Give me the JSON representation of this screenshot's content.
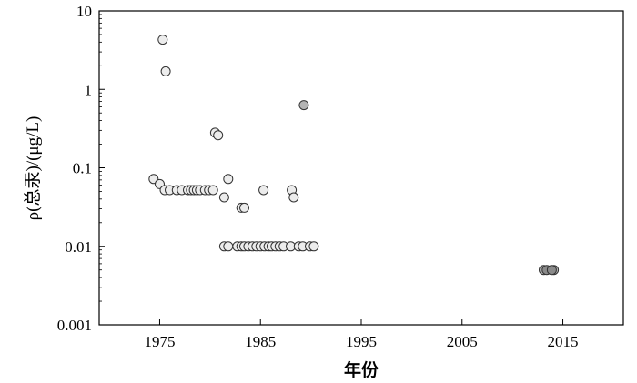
{
  "chart_data": {
    "type": "scatter",
    "title": "",
    "xlabel": "年份",
    "ylabel": "ρ(总汞)/(μg/L)",
    "y_scale": "log",
    "xlim": [
      1969,
      2021
    ],
    "ylim": [
      0.001,
      10
    ],
    "x_ticks": [
      1975,
      1985,
      1995,
      2005,
      2015
    ],
    "x_tick_labels": [
      "1975",
      "1985",
      "1995",
      "2005",
      "2015"
    ],
    "y_ticks": [
      0.001,
      0.01,
      0.1,
      1,
      10
    ],
    "y_tick_labels": [
      "0.001",
      "0.01",
      "0.1",
      "1",
      "10"
    ],
    "grid": false,
    "colors": {
      "marker_stroke": "#333333",
      "marker_fill_light": "#ececec",
      "marker_fill_gray": "#b4b4b4",
      "marker_fill_dark": "#8a8a8a"
    },
    "series": [
      {
        "marker_fill": "light",
        "points": [
          [
            1975.3,
            4.3
          ],
          [
            1975.6,
            1.7
          ],
          [
            1980.5,
            0.28
          ],
          [
            1980.8,
            0.26
          ],
          [
            1974.4,
            0.072
          ],
          [
            1975.0,
            0.062
          ],
          [
            1975.5,
            0.052
          ],
          [
            1976.0,
            0.052
          ],
          [
            1976.7,
            0.052
          ],
          [
            1977.2,
            0.052
          ],
          [
            1977.8,
            0.052
          ],
          [
            1978.1,
            0.052
          ],
          [
            1978.4,
            0.052
          ],
          [
            1978.7,
            0.052
          ],
          [
            1979.0,
            0.052
          ],
          [
            1979.5,
            0.052
          ],
          [
            1979.9,
            0.052
          ],
          [
            1980.3,
            0.052
          ],
          [
            1981.4,
            0.042
          ],
          [
            1981.8,
            0.072
          ],
          [
            1983.1,
            0.031
          ],
          [
            1983.4,
            0.031
          ],
          [
            1985.3,
            0.052
          ],
          [
            1988.1,
            0.052
          ],
          [
            1988.3,
            0.042
          ],
          [
            1981.4,
            0.01
          ],
          [
            1981.8,
            0.01
          ],
          [
            1982.7,
            0.01
          ],
          [
            1983.1,
            0.01
          ],
          [
            1983.4,
            0.01
          ],
          [
            1983.8,
            0.01
          ],
          [
            1984.2,
            0.01
          ],
          [
            1984.6,
            0.01
          ],
          [
            1985.0,
            0.01
          ],
          [
            1985.4,
            0.01
          ],
          [
            1985.8,
            0.01
          ],
          [
            1986.1,
            0.01
          ],
          [
            1986.5,
            0.01
          ],
          [
            1986.9,
            0.01
          ],
          [
            1987.3,
            0.01
          ],
          [
            1988.0,
            0.01
          ],
          [
            1988.8,
            0.01
          ],
          [
            1989.2,
            0.01
          ],
          [
            1989.9,
            0.01
          ],
          [
            1990.3,
            0.01
          ]
        ]
      },
      {
        "marker_fill": "gray",
        "points": [
          [
            1989.3,
            0.63
          ],
          [
            2013.1,
            0.005
          ],
          [
            2014.1,
            0.005
          ]
        ]
      },
      {
        "marker_fill": "dark",
        "points": [
          [
            2013.4,
            0.005
          ],
          [
            2013.9,
            0.005
          ]
        ]
      }
    ]
  }
}
